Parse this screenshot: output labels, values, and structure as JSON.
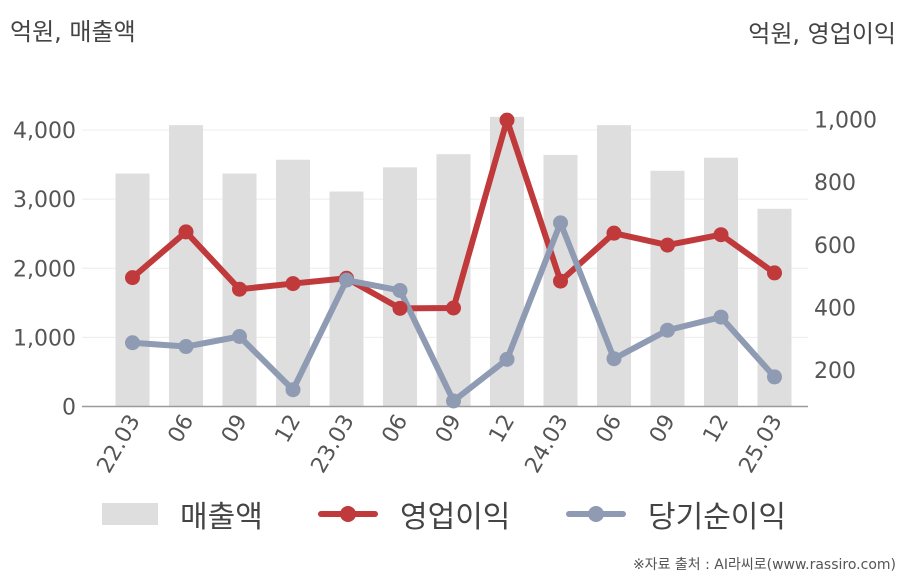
{
  "units": {
    "left": "억원, 매출액",
    "right": "억원, 영업이익"
  },
  "source": "※자료 출처 : AI라씨로(www.rassiro.com)",
  "chart_data": {
    "type": "bar+line",
    "categories": [
      "22.03",
      "06",
      "09",
      "12",
      "23.03",
      "06",
      "09",
      "12",
      "24.03",
      "06",
      "09",
      "12",
      "25.03"
    ],
    "series": [
      {
        "name": "매출액",
        "type": "bar",
        "axis": "left",
        "color": "#dedede",
        "values": [
          3370,
          4070,
          3370,
          3570,
          3110,
          3460,
          3650,
          4190,
          3640,
          4070,
          3410,
          3600,
          2860
        ]
      },
      {
        "name": "영업이익",
        "type": "line",
        "axis": "right",
        "color": "#c0393b",
        "values": [
          495,
          641,
          458,
          476,
          493,
          397,
          398,
          998,
          484,
          637,
          599,
          632,
          510
        ]
      },
      {
        "name": "당기순이익",
        "type": "line",
        "axis": "right",
        "color": "#8f9bb3",
        "values": [
          287,
          275,
          307,
          137,
          487,
          454,
          101,
          234,
          670,
          236,
          327,
          369,
          178
        ]
      }
    ],
    "y_left": {
      "min": 0,
      "max": 4000,
      "ticks": [
        "0",
        "1,000",
        "2,000",
        "3,000",
        "4,000"
      ],
      "tick_values": [
        0,
        1000,
        2000,
        3000,
        4000
      ]
    },
    "y_right": {
      "ticks": [
        "200",
        "400",
        "600",
        "800",
        "1,000"
      ],
      "tick_values": [
        200,
        400,
        600,
        800,
        1000
      ]
    },
    "grid": true,
    "legend_position": "bottom"
  }
}
